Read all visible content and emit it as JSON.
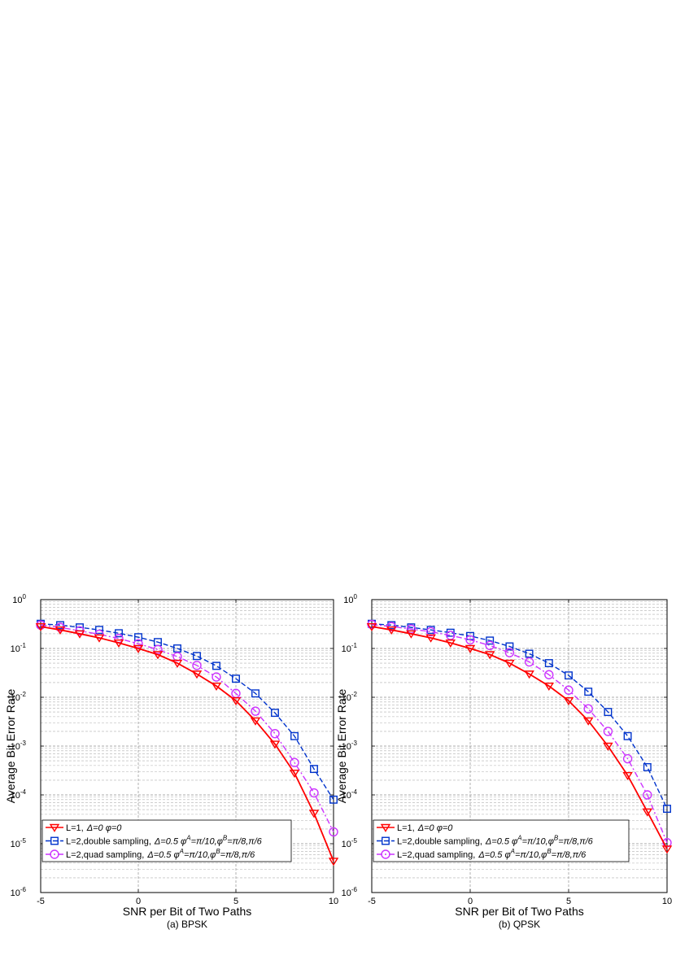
{
  "chart_data": [
    {
      "type": "line",
      "caption": "(a) BPSK",
      "xlabel": "SNR per Bit of Two Paths",
      "ylabel": "Average Bit Error Rate",
      "xlim": [
        -5,
        10
      ],
      "ylim": [
        1e-06,
        1
      ],
      "yscale": "log",
      "grid": true,
      "legend_position": "bottom-left",
      "x_ticks": [
        "-5",
        "0",
        "5",
        "10"
      ],
      "y_ticks": [
        {
          "base": "10",
          "exp": "0"
        },
        {
          "base": "10",
          "exp": "-1"
        },
        {
          "base": "10",
          "exp": "-2"
        },
        {
          "base": "10",
          "exp": "-3"
        },
        {
          "base": "10",
          "exp": "-4"
        },
        {
          "base": "10",
          "exp": "-5"
        },
        {
          "base": "10",
          "exp": "-6"
        }
      ],
      "x": [
        -5,
        -4,
        -3,
        -2,
        -1,
        0,
        1,
        2,
        3,
        4,
        5,
        6,
        7,
        8,
        9,
        10
      ],
      "series": [
        {
          "legend": {
            "plain": "L=1,",
            "italic": "Δ=0 φ=0"
          },
          "color": "#ff0000",
          "dash": "solid",
          "marker": "triangle-down",
          "values": [
            0.28,
            0.24,
            0.2,
            0.165,
            0.13,
            0.1,
            0.075,
            0.05,
            0.03,
            0.017,
            0.0085,
            0.0033,
            0.0011,
            0.00028,
            4.2e-05,
            4.4e-06
          ]
        },
        {
          "legend": {
            "plain": "L=2,double sampling,",
            "italic": "Δ=0.5 φ",
            "sup1": "A",
            "mid": "=π/10,φ",
            "sup2": "B",
            "end": "=π/8,π/6"
          },
          "color": "#0033cc",
          "dash": "dashed",
          "marker": "square",
          "values": [
            0.32,
            0.3,
            0.27,
            0.24,
            0.205,
            0.17,
            0.135,
            0.1,
            0.07,
            0.044,
            0.024,
            0.012,
            0.0048,
            0.0016,
            0.00034,
            8e-05
          ]
        },
        {
          "legend": {
            "plain": "L=2,quad sampling,",
            "italic": "Δ=0.5 φ",
            "sup1": "A",
            "mid": "=π/10,φ",
            "sup2": "B",
            "end": "=π/8,π/6"
          },
          "color": "#cc33ff",
          "dash": "dashdot",
          "marker": "circle",
          "values": [
            0.3,
            0.27,
            0.23,
            0.195,
            0.16,
            0.125,
            0.095,
            0.068,
            0.045,
            0.026,
            0.012,
            0.0052,
            0.0018,
            0.00046,
            0.00011,
            1.75e-05
          ]
        }
      ]
    },
    {
      "type": "line",
      "caption": "(b) QPSK",
      "xlabel": "SNR per Bit of Two Paths",
      "ylabel": "Average Bit Error Rate",
      "xlim": [
        -5,
        10
      ],
      "ylim": [
        1e-06,
        1
      ],
      "yscale": "log",
      "grid": true,
      "legend_position": "bottom-left",
      "x_ticks": [
        "-5",
        "0",
        "5",
        "10"
      ],
      "y_ticks": [
        {
          "base": "10",
          "exp": "0"
        },
        {
          "base": "10",
          "exp": "-1"
        },
        {
          "base": "10",
          "exp": "-2"
        },
        {
          "base": "10",
          "exp": "-3"
        },
        {
          "base": "10",
          "exp": "-4"
        },
        {
          "base": "10",
          "exp": "-5"
        },
        {
          "base": "10",
          "exp": "-6"
        }
      ],
      "x": [
        -5,
        -4,
        -3,
        -2,
        -1,
        0,
        1,
        2,
        3,
        4,
        5,
        6,
        7,
        8,
        9,
        10
      ],
      "series": [
        {
          "legend": {
            "plain": "L=1,",
            "italic": "Δ=0 φ=0"
          },
          "color": "#ff0000",
          "dash": "solid",
          "marker": "triangle-down",
          "values": [
            0.28,
            0.24,
            0.2,
            0.165,
            0.13,
            0.1,
            0.075,
            0.05,
            0.03,
            0.017,
            0.0085,
            0.0033,
            0.001,
            0.00025,
            4.5e-05,
            7.8e-06
          ]
        },
        {
          "legend": {
            "plain": "L=2,double sampling,",
            "italic": "Δ=0.5 φ",
            "sup1": "A",
            "mid": "=π/10,φ",
            "sup2": "B",
            "end": "=π/8,π/6"
          },
          "color": "#0033cc",
          "dash": "dashed",
          "marker": "square",
          "values": [
            0.32,
            0.3,
            0.27,
            0.24,
            0.21,
            0.18,
            0.145,
            0.11,
            0.078,
            0.05,
            0.028,
            0.013,
            0.005,
            0.0016,
            0.00037,
            5.2e-05
          ]
        },
        {
          "legend": {
            "plain": "L=2,quad sampling,",
            "italic": "Δ=0.5 φ",
            "sup1": "A",
            "mid": "=π/10,φ",
            "sup2": "B",
            "end": "=π/8,π/6"
          },
          "color": "#cc33ff",
          "dash": "dashdot",
          "marker": "circle",
          "values": [
            0.31,
            0.28,
            0.25,
            0.22,
            0.185,
            0.15,
            0.115,
            0.082,
            0.053,
            0.029,
            0.014,
            0.0058,
            0.002,
            0.00055,
            0.0001,
            1.05e-05
          ]
        }
      ]
    }
  ]
}
